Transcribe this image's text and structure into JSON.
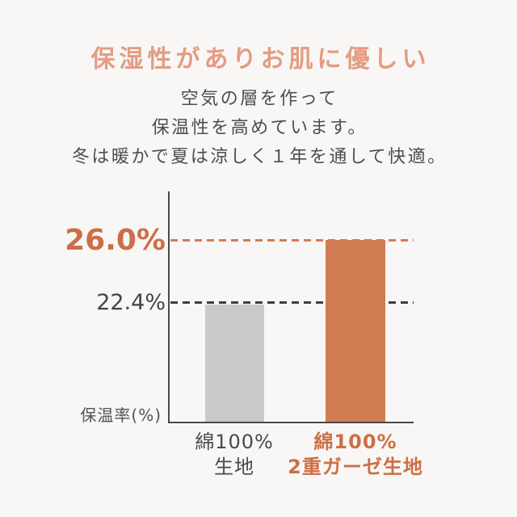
{
  "page": {
    "background": "#F8F7F5"
  },
  "header": {
    "title": "保湿性がありお肌に優しい",
    "title_color": "#E49C82",
    "subtitle_lines": [
      "空気の層を作って",
      "保温性を高めています。",
      "冬は暖かで夏は涼しく１年を通して快適。"
    ],
    "subtitle_color": "#4E4E4E"
  },
  "chart_data": {
    "type": "bar",
    "title": "",
    "ylabel": "保温率(%)",
    "categories": [
      "綿100% 生地",
      "綿100% 2重ガーゼ生地"
    ],
    "values": [
      22.4,
      26.0
    ],
    "bars": [
      {
        "label_line1": "綿100%",
        "label_line2": "生地",
        "value": 22.4,
        "value_label": "22.4%",
        "bar_color": "#CACACA",
        "label_color": "#4A4A4A"
      },
      {
        "label_line1": "綿100%",
        "label_line2": "2重ガーゼ生地",
        "value": 26.0,
        "value_label": "26.0%",
        "bar_color": "#D17C52",
        "label_color": "#CC6F45"
      }
    ],
    "reference_lines": [
      {
        "value": 22.4,
        "style": "dashed",
        "color": "#3E3E3E"
      },
      {
        "value": 26.0,
        "style": "dashed",
        "color": "#D57B55"
      }
    ],
    "grid": false,
    "legend": false,
    "layout_hint": "y-axis truncated; bars not zero-based"
  }
}
